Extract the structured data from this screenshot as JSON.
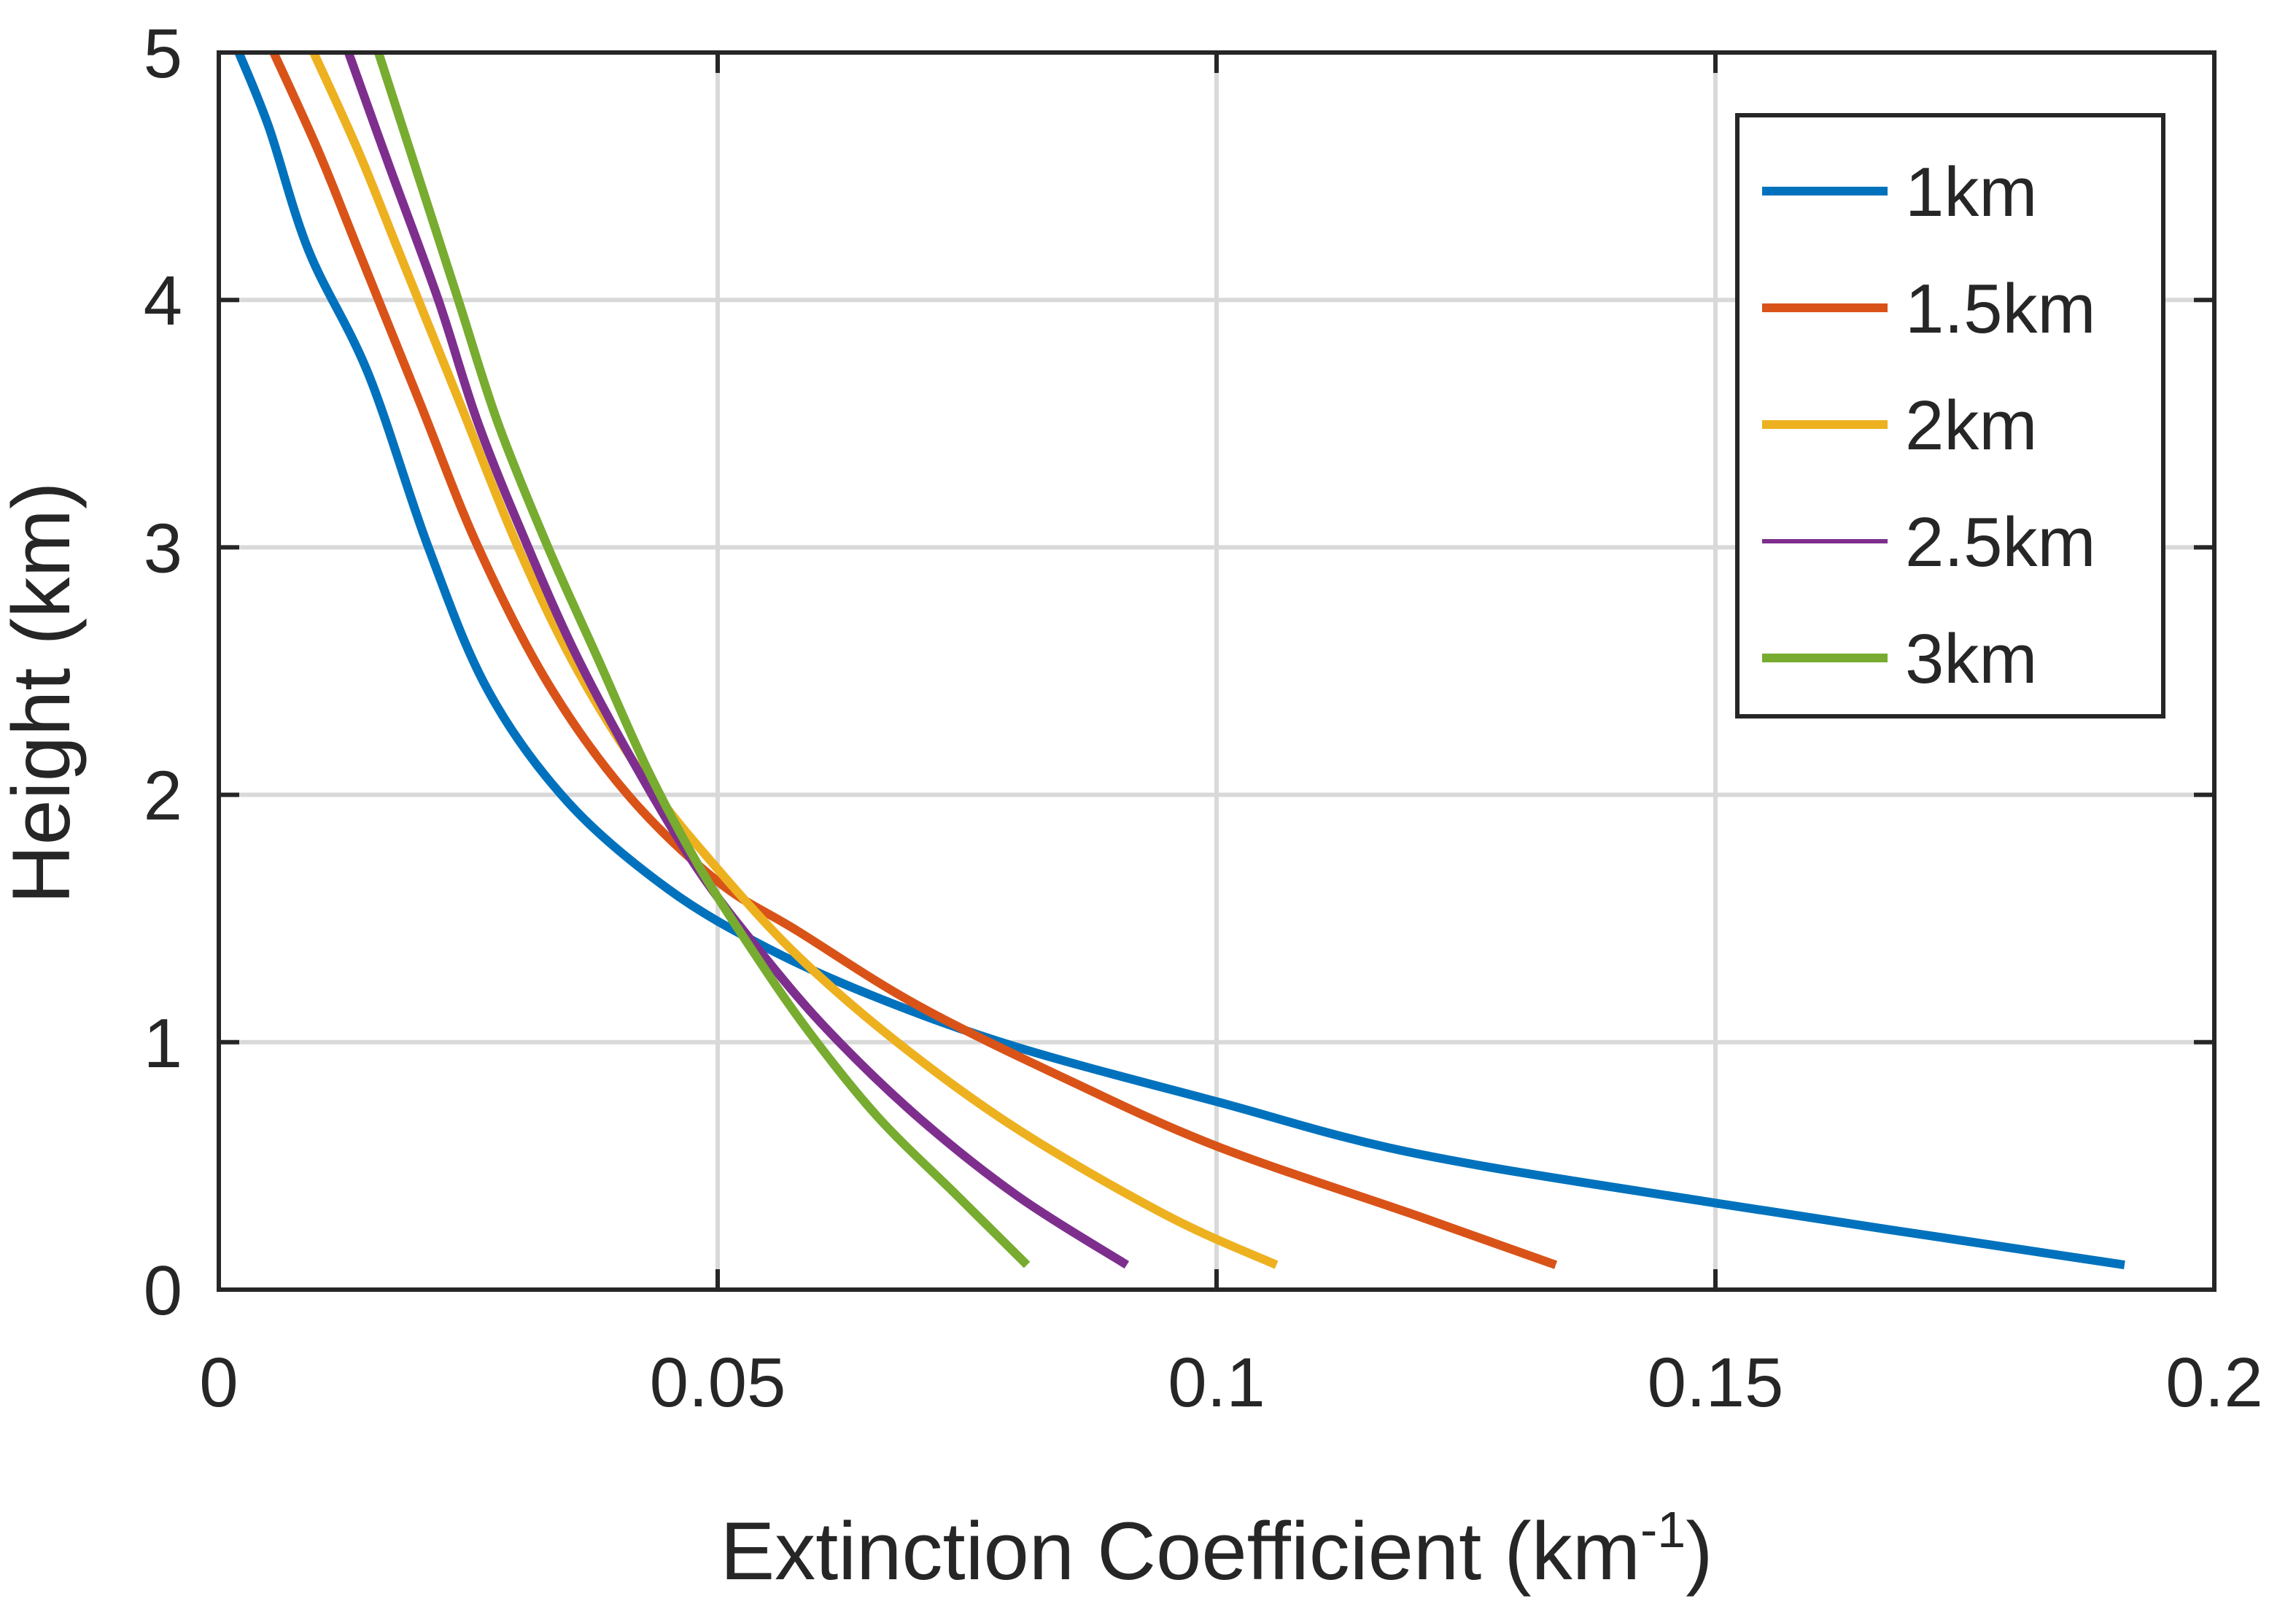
{
  "chart_data": {
    "type": "line",
    "title": "",
    "xlabel": "Extinction Coefficient (km",
    "xlabel_superscript": "-1",
    "xlabel_suffix": ")",
    "ylabel": "Height (km)",
    "xlim": [
      0,
      0.2
    ],
    "ylim": [
      0,
      5
    ],
    "grid": true,
    "legend_position": "top-right",
    "xticks": [
      {
        "value": 0,
        "label": "0"
      },
      {
        "value": 0.05,
        "label": "0.05"
      },
      {
        "value": 0.1,
        "label": "0.1"
      },
      {
        "value": 0.15,
        "label": "0.15"
      },
      {
        "value": 0.2,
        "label": "0.2"
      }
    ],
    "yticks": [
      {
        "value": 0,
        "label": "0"
      },
      {
        "value": 1,
        "label": "1"
      },
      {
        "value": 2,
        "label": "2"
      },
      {
        "value": 3,
        "label": "3"
      },
      {
        "value": 4,
        "label": "4"
      },
      {
        "value": 5,
        "label": "5"
      }
    ],
    "series": [
      {
        "name": "1km",
        "color": "#0072BD",
        "points": [
          [
            0.191,
            0.1
          ],
          [
            0.15,
            0.35
          ],
          [
            0.12,
            0.55
          ],
          [
            0.1,
            0.76
          ],
          [
            0.08,
            0.98
          ],
          [
            0.066,
            1.18
          ],
          [
            0.055,
            1.38
          ],
          [
            0.045,
            1.62
          ],
          [
            0.035,
            1.97
          ],
          [
            0.027,
            2.42
          ],
          [
            0.021,
            3.0
          ],
          [
            0.015,
            3.7
          ],
          [
            0.009,
            4.2
          ],
          [
            0.005,
            4.7
          ],
          [
            0.002,
            5.0
          ]
        ]
      },
      {
        "name": "1.5km",
        "color": "#D95319",
        "points": [
          [
            0.134,
            0.1
          ],
          [
            0.12,
            0.3
          ],
          [
            0.1,
            0.58
          ],
          [
            0.085,
            0.85
          ],
          [
            0.07,
            1.15
          ],
          [
            0.058,
            1.45
          ],
          [
            0.05,
            1.65
          ],
          [
            0.041,
            2.0
          ],
          [
            0.033,
            2.45
          ],
          [
            0.026,
            3.0
          ],
          [
            0.02,
            3.6
          ],
          [
            0.014,
            4.2
          ],
          [
            0.01,
            4.6
          ],
          [
            0.0055,
            5.0
          ]
        ]
      },
      {
        "name": "2km",
        "color": "#EDB120",
        "points": [
          [
            0.106,
            0.1
          ],
          [
            0.095,
            0.3
          ],
          [
            0.08,
            0.65
          ],
          [
            0.068,
            1.0
          ],
          [
            0.058,
            1.35
          ],
          [
            0.05,
            1.7
          ],
          [
            0.043,
            2.05
          ],
          [
            0.036,
            2.5
          ],
          [
            0.03,
            3.0
          ],
          [
            0.024,
            3.6
          ],
          [
            0.018,
            4.2
          ],
          [
            0.014,
            4.6
          ],
          [
            0.0095,
            5.0
          ]
        ]
      },
      {
        "name": "2.5km",
        "color": "#7E2F8E",
        "points": [
          [
            0.091,
            0.1
          ],
          [
            0.08,
            0.38
          ],
          [
            0.07,
            0.7
          ],
          [
            0.061,
            1.05
          ],
          [
            0.054,
            1.38
          ],
          [
            0.048,
            1.7
          ],
          [
            0.042,
            2.1
          ],
          [
            0.036,
            2.55
          ],
          [
            0.031,
            3.0
          ],
          [
            0.026,
            3.5
          ],
          [
            0.022,
            4.0
          ],
          [
            0.017,
            4.55
          ],
          [
            0.013,
            5.0
          ]
        ]
      },
      {
        "name": "3km",
        "color": "#77AC30",
        "points": [
          [
            0.081,
            0.1
          ],
          [
            0.074,
            0.38
          ],
          [
            0.066,
            0.7
          ],
          [
            0.059,
            1.05
          ],
          [
            0.053,
            1.4
          ],
          [
            0.048,
            1.72
          ],
          [
            0.043,
            2.1
          ],
          [
            0.038,
            2.55
          ],
          [
            0.033,
            3.0
          ],
          [
            0.028,
            3.5
          ],
          [
            0.024,
            4.0
          ],
          [
            0.02,
            4.5
          ],
          [
            0.016,
            5.0
          ]
        ]
      }
    ]
  }
}
